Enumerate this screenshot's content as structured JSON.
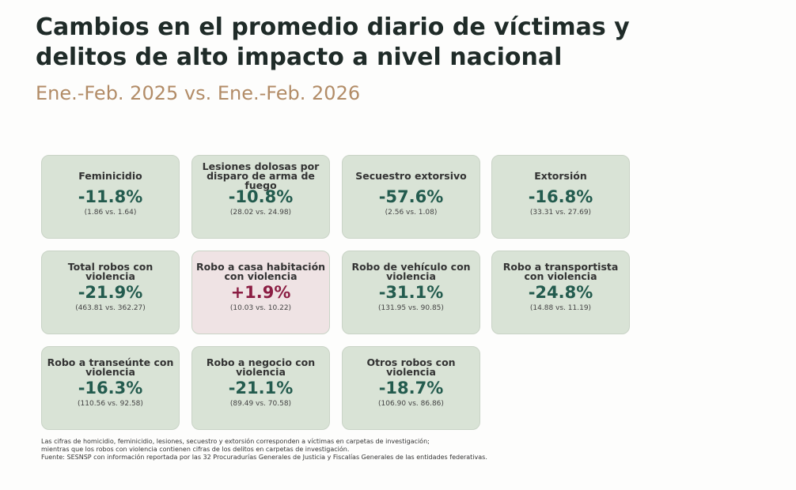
{
  "header": {
    "title": "Cambios en el promedio diario de víctimas y delitos de alto impacto a nivel nacional",
    "subtitle": "Ene.-Feb. 2025 vs. Ene.-Feb. 2026"
  },
  "cards": [
    {
      "label": "Feminicidio",
      "change": "-11.8%",
      "detail": "(1.86 vs. 1.64)",
      "color": "#235b4e",
      "background": "#d9e3d6"
    },
    {
      "label": "Lesiones dolosas por disparo de arma de fuego",
      "change": "-10.8%",
      "detail": "(28.02 vs. 24.98)",
      "color": "#235b4e",
      "background": "#d9e3d6"
    },
    {
      "label": "Secuestro extorsivo",
      "change": "-57.6%",
      "detail": "(2.56 vs. 1.08)",
      "color": "#235b4e",
      "background": "#d9e3d6"
    },
    {
      "label": "Extorsión",
      "change": "-16.8%",
      "detail": "(33.31 vs. 27.69)",
      "color": "#235b4e",
      "background": "#d9e3d6"
    },
    {
      "label": "Total robos con violencia",
      "change": "-21.9%",
      "detail": "(463.81 vs. 362.27)",
      "color": "#235b4e",
      "background": "#d9e3d6"
    },
    {
      "label": "Robo a casa habitación con violencia",
      "change": "+1.9%",
      "detail": "(10.03 vs. 10.22)",
      "color": "#8b1e43",
      "background": "#efe3e4"
    },
    {
      "label": "Robo de vehículo con violencia",
      "change": "-31.1%",
      "detail": "(131.95 vs. 90.85)",
      "color": "#235b4e",
      "background": "#d9e3d6"
    },
    {
      "label": "Robo a transportista con violencia",
      "change": "-24.8%",
      "detail": "(14.88 vs. 11.19)",
      "color": "#235b4e",
      "background": "#d9e3d6"
    },
    {
      "label": "Robo a transeúnte con violencia",
      "change": "-16.3%",
      "detail": "(110.56 vs. 92.58)",
      "color": "#235b4e",
      "background": "#d9e3d6"
    },
    {
      "label": "Robo a negocio con violencia",
      "change": "-21.1%",
      "detail": "(89.49 vs. 70.58)",
      "color": "#235b4e",
      "background": "#d9e3d6"
    },
    {
      "label": "Otros robos con violencia",
      "change": "-18.7%",
      "detail": "(106.90 vs. 86.86)",
      "color": "#235b4e",
      "background": "#d9e3d6"
    }
  ],
  "footnotes": [
    "Las cifras de homicidio, feminicidio, lesiones, secuestro y extorsión corresponden a víctimas en carpetas de investigación;",
    "mientras que los robos con violencia contienen cifras de los delitos en carpetas de investigación.",
    "Fuente: SESNSP con información reportada por las 32 Procuradurías Generales de Justicia y Fiscalías Generales de las entidades federativas."
  ]
}
